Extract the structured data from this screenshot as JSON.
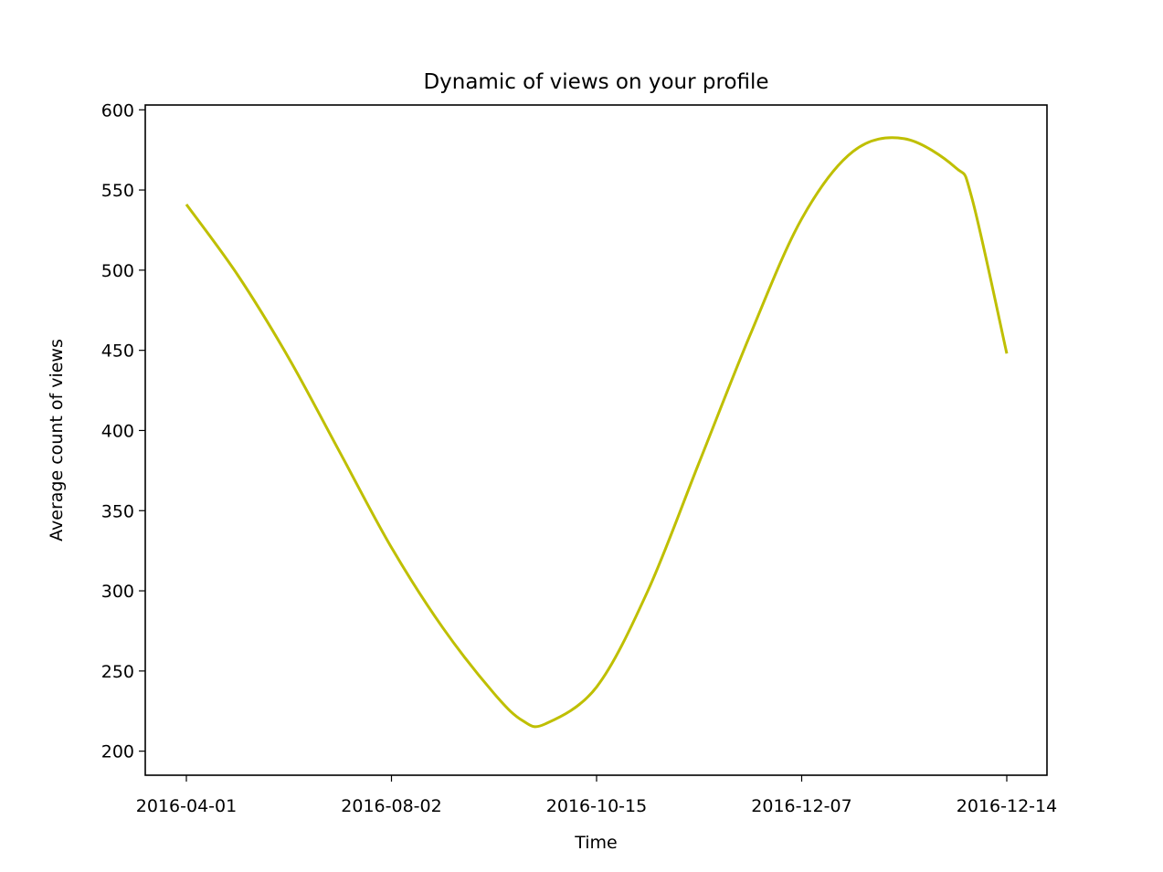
{
  "chart_data": {
    "type": "line",
    "title": "Dynamic of views on your profile",
    "xlabel": "Time",
    "ylabel": "Average count of views",
    "x_tick_labels": [
      "2016-04-01",
      "2016-08-02",
      "2016-10-15",
      "2016-12-07",
      "2016-12-14"
    ],
    "y_ticks": [
      200,
      250,
      300,
      350,
      400,
      450,
      500,
      550,
      600
    ],
    "ylim": [
      185,
      603
    ],
    "grid": false,
    "legend": "none",
    "series": [
      {
        "color": "#bfbf00",
        "x": [
          0,
          0.25,
          0.5,
          0.75,
          1,
          1.25,
          1.5,
          1.64,
          1.75,
          2,
          2.25,
          2.5,
          2.75,
          3,
          3.25,
          3.5,
          3.75,
          3.83,
          4
        ],
        "y": [
          541,
          497,
          445,
          386,
          327,
          277,
          236,
          219,
          217,
          240,
          300,
          380,
          460,
          532,
          574,
          582,
          564,
          545,
          448
        ]
      }
    ]
  }
}
